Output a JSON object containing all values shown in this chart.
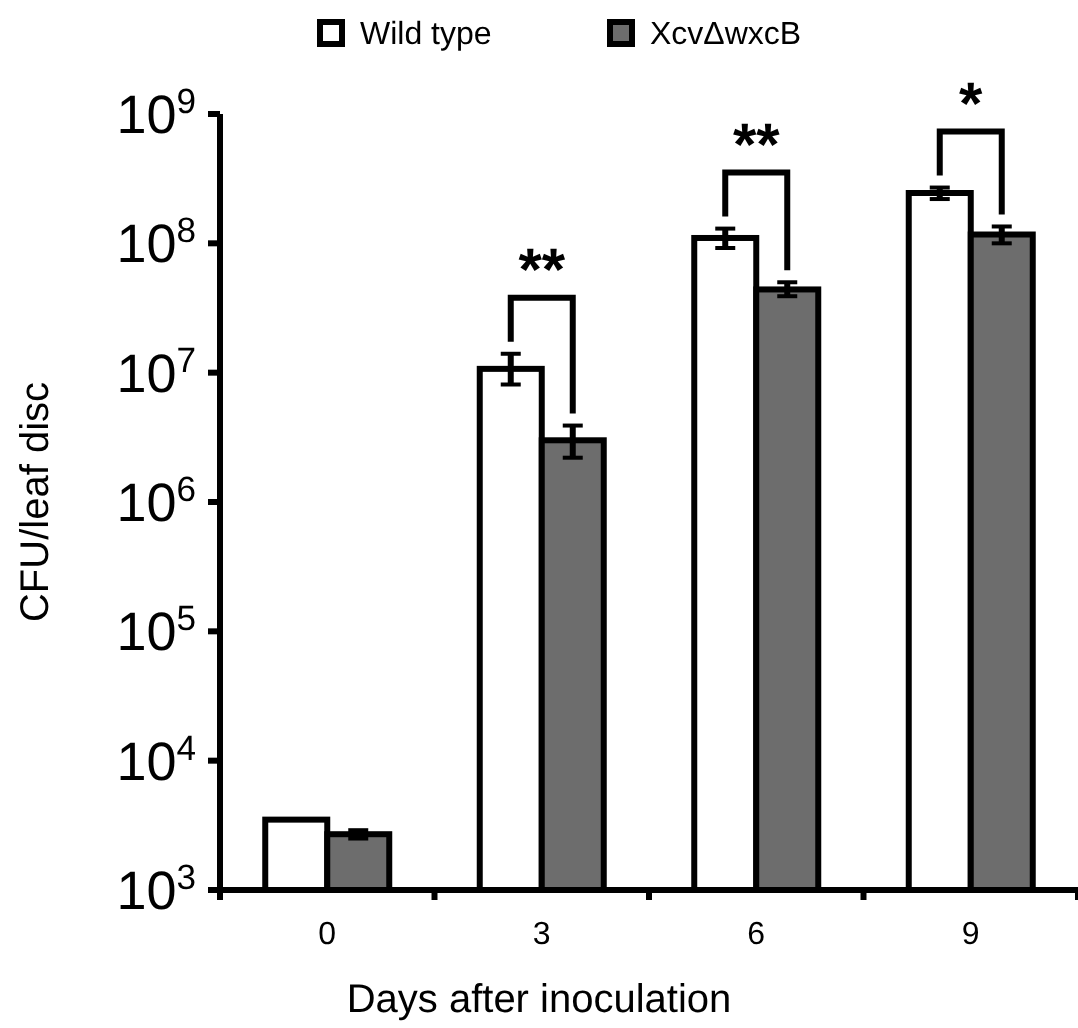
{
  "chart_data": {
    "type": "bar",
    "xlabel": "Days after inoculation",
    "ylabel": "CFU/leaf disc",
    "categories": [
      "0",
      "3",
      "6",
      "9"
    ],
    "series": [
      {
        "name": "Wild type",
        "color": "#ffffff",
        "values": [
          3500,
          10700000,
          110000000,
          245000000
        ],
        "errors": [
          null,
          [
            8100000,
            14000000
          ],
          [
            92000000,
            130000000
          ],
          [
            220000000,
            270000000
          ]
        ]
      },
      {
        "name": "XcvΔwxcB",
        "color": "#6d6d6d",
        "values": [
          2700,
          3000000,
          44000000,
          117000000
        ],
        "errors": [
          [
            2500,
            2900
          ],
          [
            2200000,
            3900000
          ],
          [
            39000000,
            50000000
          ],
          [
            100000000,
            135000000
          ]
        ]
      }
    ],
    "log": true,
    "ylim": [
      1000,
      1000000000
    ],
    "yticks": [
      {
        "value": 1000,
        "label": "10$^{3}$"
      },
      {
        "value": 10000,
        "label": "10$^{4}$"
      },
      {
        "value": 100000,
        "label": "10$^{5}$"
      },
      {
        "value": 1000000,
        "label": "10$^{6}$"
      },
      {
        "value": 10000000,
        "label": "10$^{7}$"
      },
      {
        "value": 100000000,
        "label": "10$^{8}$"
      },
      {
        "value": 1000000000,
        "label": "10$^{9}$"
      }
    ],
    "annotations": [
      "**",
      "**",
      "*"
    ],
    "grid": false,
    "legend": "top"
  }
}
